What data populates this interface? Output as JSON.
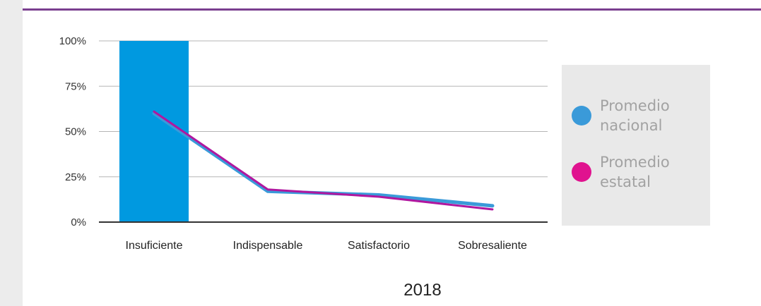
{
  "chart_data": {
    "type": "bar",
    "title": "2018",
    "xlabel": "",
    "ylabel": "",
    "ylim": [
      0,
      100
    ],
    "y_ticks": [
      "0%",
      "25%",
      "50%",
      "75%",
      "100%"
    ],
    "categories": [
      "Insuficiente",
      "Indispensable",
      "Satisfactorio",
      "Sobresaliente"
    ],
    "bar_series": {
      "values": [
        100,
        0,
        0,
        0
      ],
      "color": "#0099e0"
    },
    "series": [
      {
        "name": "Promedio nacional",
        "type": "line",
        "values": [
          60,
          17,
          15,
          9
        ],
        "color": "#3a9ad9"
      },
      {
        "name": "Promedio estatal",
        "type": "line",
        "values": [
          61,
          18,
          14,
          7
        ],
        "color": "#b0179f"
      }
    ],
    "grid": true,
    "legend_position": "right"
  },
  "legend": {
    "items": [
      {
        "line1": "Promedio",
        "line2": "nacional",
        "color": "#3a9ad9"
      },
      {
        "line1": "Promedio",
        "line2": "estatal",
        "color": "#e0138f"
      }
    ]
  },
  "colors": {
    "header_rule": "#7a3e8f",
    "grid": "#b5b5b5",
    "axis": "#333333"
  }
}
